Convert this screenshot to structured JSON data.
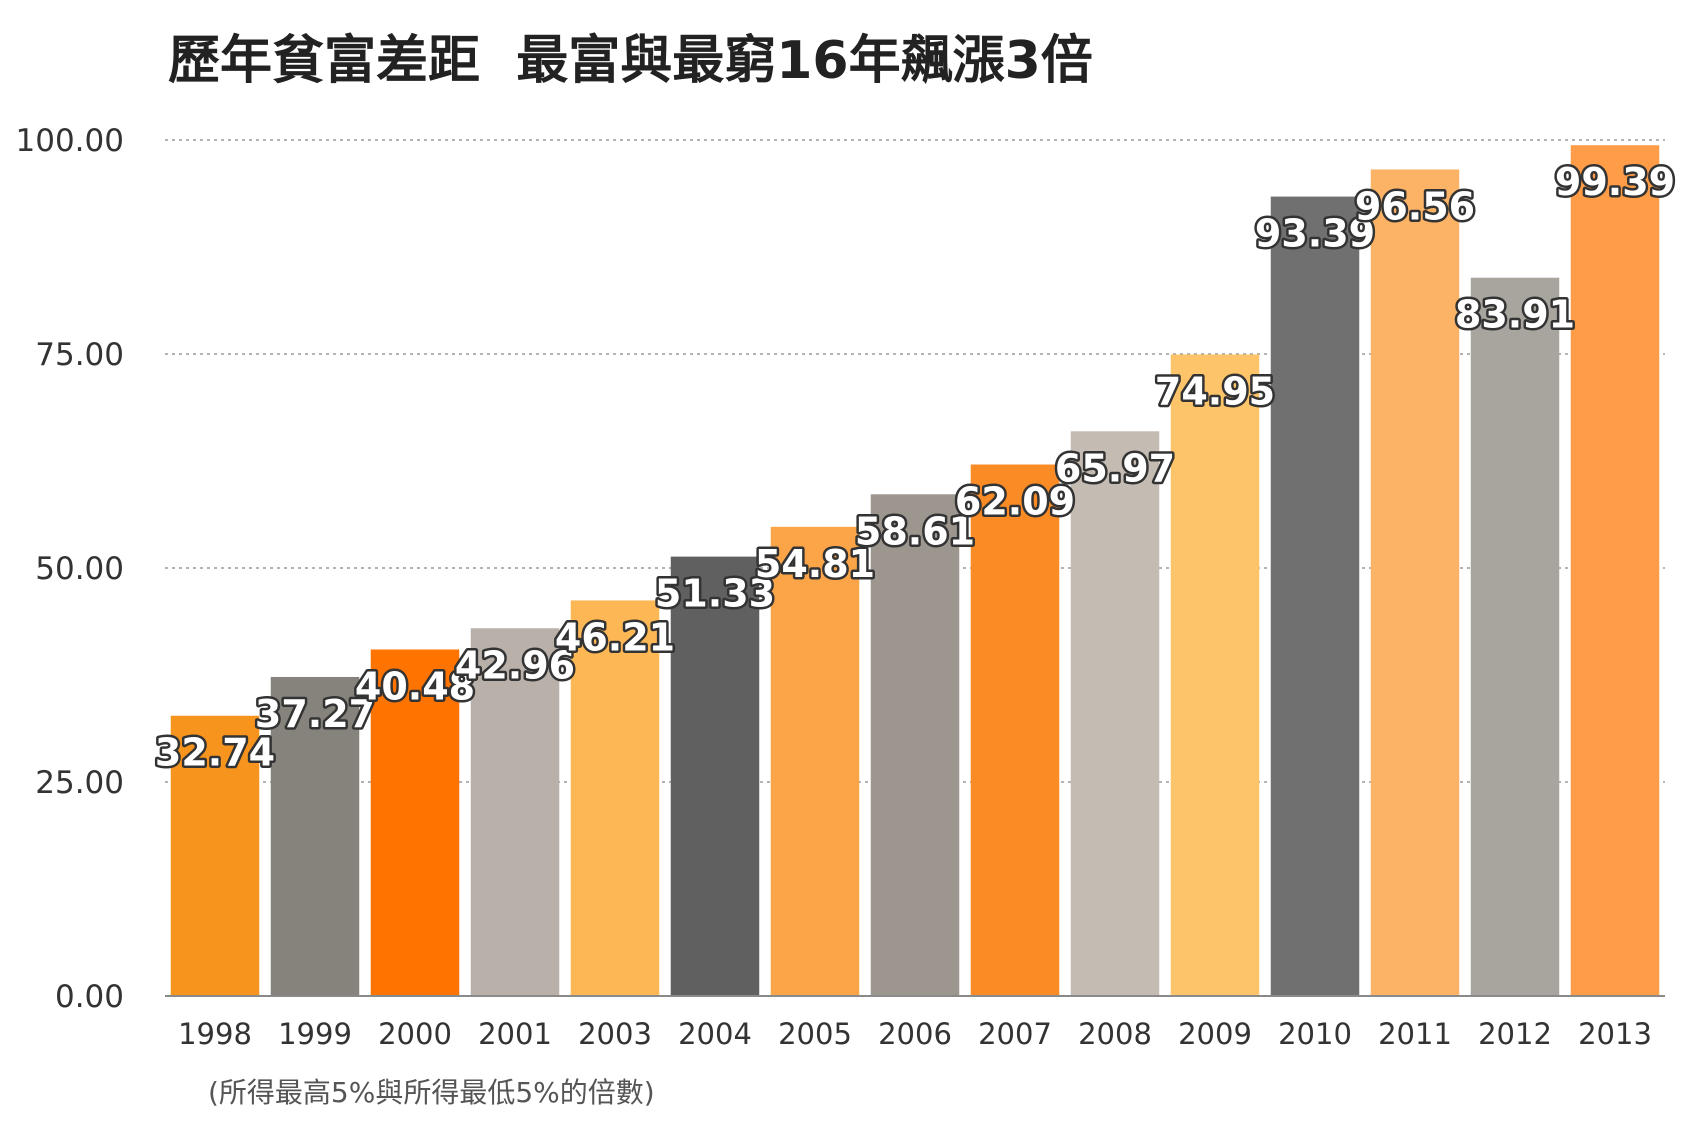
{
  "chart_data": {
    "type": "bar",
    "title": "歷年貧富差距  最富與最窮16年飆漲3倍",
    "note": "(所得最高5%與所得最低5%的倍數)",
    "categories": [
      "1998",
      "1999",
      "2000",
      "2001",
      "2003",
      "2004",
      "2005",
      "2006",
      "2007",
      "2008",
      "2009",
      "2010",
      "2011",
      "2012",
      "2013"
    ],
    "values": [
      32.74,
      37.27,
      40.48,
      42.96,
      46.21,
      51.33,
      54.81,
      58.61,
      62.09,
      65.97,
      74.95,
      93.39,
      96.56,
      83.91,
      99.39
    ],
    "value_labels": [
      "32.74",
      "37.27",
      "40.48",
      "42.96",
      "46.21",
      "51.33",
      "54.81",
      "58.61",
      "62.09",
      "65.97",
      "74.95",
      "93.39",
      "96.56",
      "83.91",
      "99.39"
    ],
    "bar_colors": [
      "#f7941d",
      "#86827c",
      "#ff7300",
      "#b8b0a9",
      "#fdb755",
      "#606060",
      "#fba548",
      "#9c968f",
      "#fb8b24",
      "#c4bbb2",
      "#fec46a",
      "#707070",
      "#fdb366",
      "#a8a49e",
      "#fe9c48"
    ],
    "yticks": [
      "100.00",
      "75.00",
      "50.00",
      "25.00",
      "0.00"
    ],
    "ylim": [
      0,
      100
    ],
    "grid": true,
    "legend": "none"
  }
}
